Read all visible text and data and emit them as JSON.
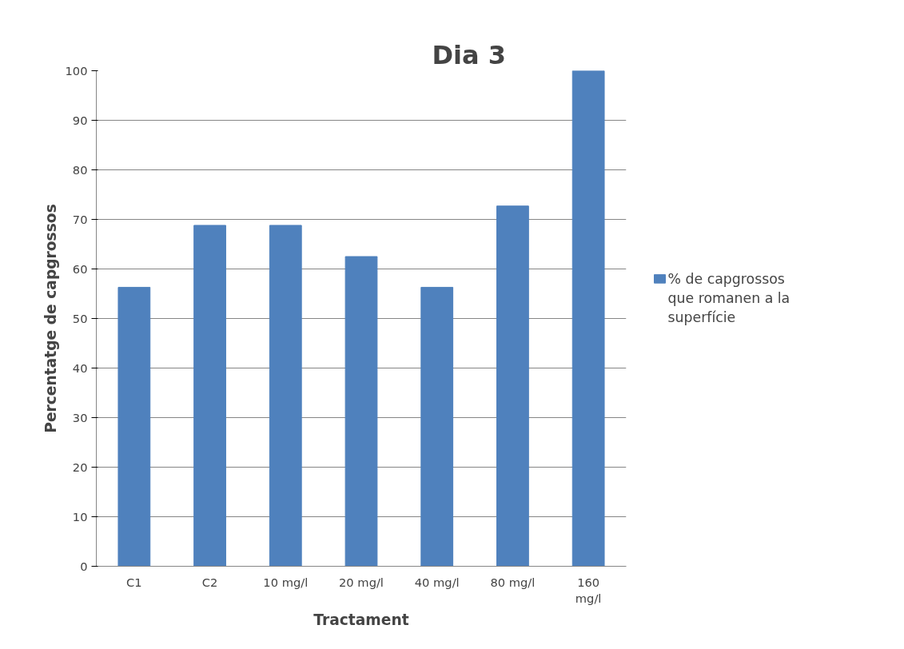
{
  "chart_data": {
    "type": "bar",
    "title": "Dia 3",
    "xlabel": "Tractament",
    "ylabel": "Percentatge de capgrossos",
    "categories": [
      "C1",
      "C2",
      "10 mg/l",
      "20 mg/l",
      "40 mg/l",
      "80 mg/l",
      "160 mg/l"
    ],
    "series": [
      {
        "name": "% de capgrossos que romanen a la superfície",
        "color": "#4f81bd",
        "values": [
          56.3,
          68.8,
          68.8,
          62.5,
          56.3,
          72.7,
          100
        ]
      }
    ],
    "ylim": [
      0,
      100
    ],
    "yticks": [
      0,
      10,
      20,
      30,
      40,
      50,
      60,
      70,
      80,
      90,
      100
    ],
    "grid": "y",
    "legend": "right"
  }
}
